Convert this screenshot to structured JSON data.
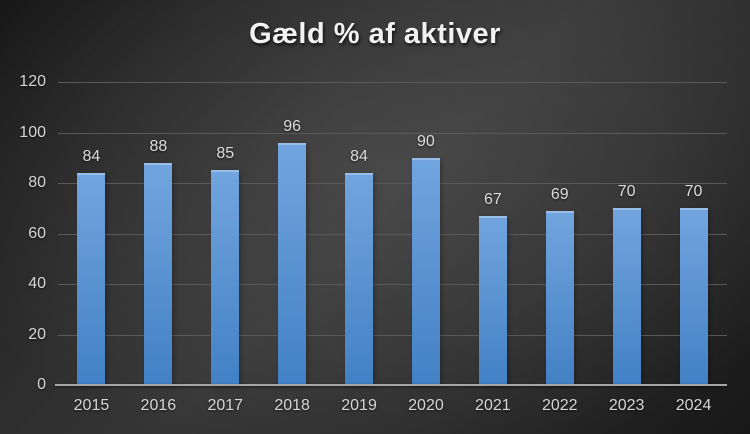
{
  "chart_data": {
    "type": "bar",
    "title": "Gæld % af aktiver",
    "categories": [
      "2015",
      "2016",
      "2017",
      "2018",
      "2019",
      "2020",
      "2021",
      "2022",
      "2023",
      "2024"
    ],
    "values": [
      84,
      88,
      85,
      96,
      84,
      90,
      67,
      69,
      70,
      70
    ],
    "xlabel": "",
    "ylabel": "",
    "ylim": [
      0,
      120
    ],
    "yticks": [
      0,
      20,
      40,
      60,
      80,
      100,
      120
    ],
    "grid": true,
    "legend": false,
    "data_labels": true,
    "colors": {
      "bar_top": "#72A5DE",
      "bar_bottom": "#4280C5",
      "gridline": "#5a5a5a",
      "axis_line": "#a6a6a6",
      "tick_label": "#d6d6d6",
      "data_label": "#dcdcdc",
      "title": "#f2f2f2"
    }
  }
}
